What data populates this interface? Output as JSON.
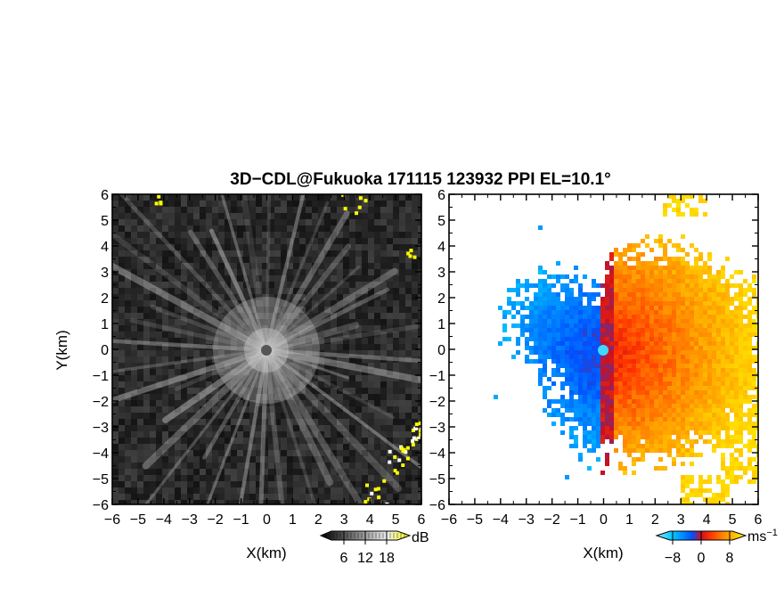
{
  "chart_data": {
    "type": "heatmap",
    "title": "3D−CDL@Fukuoka 171115 123932 PPI EL=10.1°",
    "panels": [
      {
        "name": "reflectivity",
        "xlabel": "X(km)",
        "ylabel": "Y(km)",
        "xlim": [
          -6,
          6
        ],
        "ylim": [
          -6,
          6
        ],
        "xticks": [
          "−6",
          "−5",
          "−4",
          "−3",
          "−2",
          "−1",
          "0",
          "1",
          "2",
          "3",
          "4",
          "5",
          "6"
        ],
        "yticks": [
          "6",
          "5",
          "4",
          "3",
          "2",
          "1",
          "0",
          "−1",
          "−2",
          "−3",
          "−4",
          "−5",
          "−6"
        ],
        "colorbar": {
          "unit": "dB",
          "range": [
            0,
            24
          ],
          "ticks": [
            "6",
            "12",
            "18"
          ],
          "tick_values": [
            6,
            12,
            18
          ],
          "colors": [
            "#000000",
            "#555555",
            "#aaaaaa",
            "#ffffff",
            "#ffff00"
          ]
        }
      },
      {
        "name": "radial-velocity",
        "xlabel": "X(km)",
        "xlim": [
          -6,
          6
        ],
        "ylim": [
          -6,
          6
        ],
        "xticks": [
          "−6",
          "−5",
          "−4",
          "−3",
          "−2",
          "−1",
          "0",
          "1",
          "2",
          "3",
          "4",
          "5",
          "6"
        ],
        "yticks": [
          "6",
          "5",
          "4",
          "3",
          "2",
          "1",
          "0",
          "−1",
          "−2",
          "−3",
          "−4",
          "−5",
          "−6"
        ],
        "colorbar": {
          "unit": "ms",
          "unit_exponent": "−1",
          "range": [
            -12,
            12
          ],
          "ticks": [
            "−8",
            "0",
            "8"
          ],
          "tick_values": [
            -8,
            0,
            8
          ],
          "colors": [
            "#7fe8ff",
            "#00c8ff",
            "#0050ff",
            "#cc1020",
            "#ff3300",
            "#ff8800",
            "#ffcc00",
            "#ffff00"
          ]
        }
      }
    ]
  }
}
